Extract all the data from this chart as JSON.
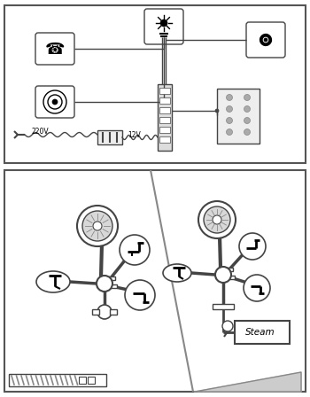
{
  "bg_color": "#ffffff",
  "box_bg": "#ffffff",
  "border_color": "#555555",
  "line_color": "#444444",
  "gray_color": "#888888",
  "light_gray": "#cccccc",
  "text_220v": "220V",
  "text_12v": "12V",
  "text_steam": "Steam"
}
